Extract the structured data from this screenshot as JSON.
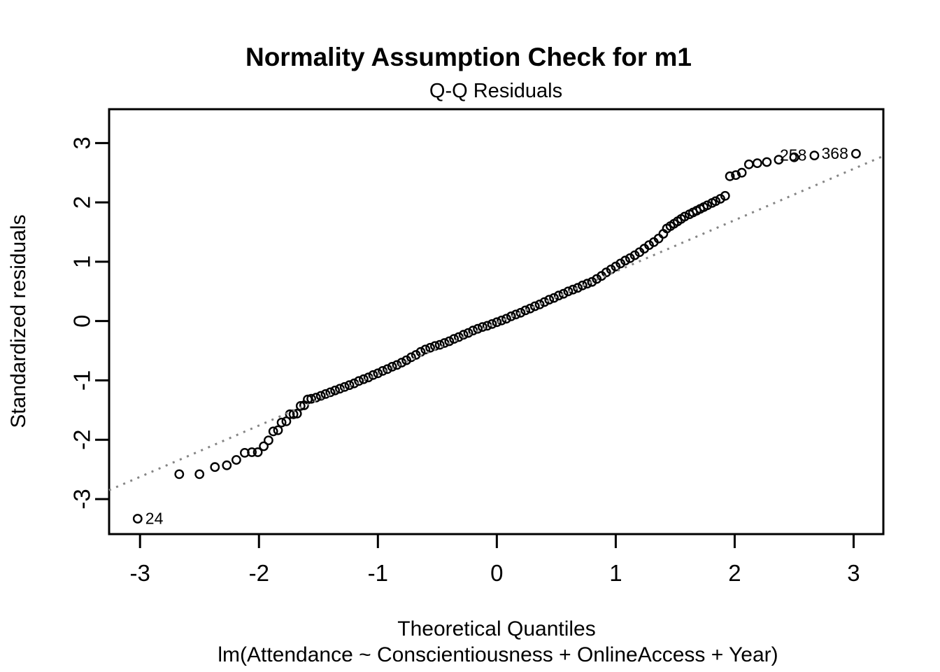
{
  "chart_data": {
    "type": "scatter",
    "title": "Normality Assumption Check for m1",
    "subtitle": "Q-Q Residuals",
    "xlabel": "Theoretical Quantiles",
    "sub_caption": "lm(Attendance ~ Conscientiousness + OnlineAccess + Year)",
    "ylabel": "Standardized residuals",
    "x_ticks": [
      -3,
      -2,
      -1,
      0,
      1,
      2,
      3
    ],
    "y_ticks": [
      -3,
      -2,
      -1,
      0,
      1,
      2,
      3
    ],
    "xlim": [
      -3.26,
      3.25
    ],
    "ylim": [
      -3.59,
      3.57
    ],
    "grid": false,
    "marker": {
      "shape": "open-circle",
      "color": "#000000",
      "radius_px": 5.7
    },
    "reference_line": {
      "style": "dotted",
      "color": "#858585",
      "slope": 0.865,
      "intercept": -0.03
    },
    "labeled_points": [
      {
        "label": "24",
        "x": -3.02,
        "y": -3.33,
        "side": "right"
      },
      {
        "label": "258",
        "x": 2.67,
        "y": 2.79,
        "side": "left"
      },
      {
        "label": "368",
        "x": 3.02,
        "y": 2.82,
        "side": "left"
      }
    ],
    "points": [
      [
        -3.02,
        -3.33
      ],
      [
        -2.67,
        -2.58
      ],
      [
        -2.5,
        -2.58
      ],
      [
        -2.37,
        -2.46
      ],
      [
        -2.27,
        -2.43
      ],
      [
        -2.19,
        -2.34
      ],
      [
        -2.12,
        -2.22
      ],
      [
        -2.06,
        -2.21
      ],
      [
        -2.01,
        -2.21
      ],
      [
        -1.96,
        -2.11
      ],
      [
        -1.92,
        -2.01
      ],
      [
        -1.88,
        -1.86
      ],
      [
        -1.84,
        -1.84
      ],
      [
        -1.81,
        -1.71
      ],
      [
        -1.77,
        -1.69
      ],
      [
        -1.74,
        -1.57
      ],
      [
        -1.71,
        -1.57
      ],
      [
        -1.68,
        -1.56
      ],
      [
        -1.65,
        -1.43
      ],
      [
        -1.62,
        -1.42
      ],
      [
        -1.59,
        -1.32
      ],
      [
        -1.56,
        -1.31
      ],
      [
        -1.52,
        -1.29
      ],
      [
        -1.48,
        -1.26
      ],
      [
        -1.44,
        -1.23
      ],
      [
        -1.4,
        -1.2
      ],
      [
        -1.36,
        -1.17
      ],
      [
        -1.32,
        -1.14
      ],
      [
        -1.28,
        -1.11
      ],
      [
        -1.24,
        -1.08
      ],
      [
        -1.2,
        -1.05
      ],
      [
        -1.16,
        -1.01
      ],
      [
        -1.12,
        -0.98
      ],
      [
        -1.08,
        -0.95
      ],
      [
        -1.04,
        -0.91
      ],
      [
        -1,
        -0.88
      ],
      [
        -0.96,
        -0.84
      ],
      [
        -0.92,
        -0.81
      ],
      [
        -0.88,
        -0.77
      ],
      [
        -0.84,
        -0.74
      ],
      [
        -0.8,
        -0.7
      ],
      [
        -0.76,
        -0.66
      ],
      [
        -0.72,
        -0.61
      ],
      [
        -0.68,
        -0.57
      ],
      [
        -0.64,
        -0.52
      ],
      [
        -0.6,
        -0.48
      ],
      [
        -0.56,
        -0.45
      ],
      [
        -0.52,
        -0.42
      ],
      [
        -0.48,
        -0.4
      ],
      [
        -0.44,
        -0.37
      ],
      [
        -0.4,
        -0.34
      ],
      [
        -0.36,
        -0.3
      ],
      [
        -0.32,
        -0.27
      ],
      [
        -0.28,
        -0.23
      ],
      [
        -0.24,
        -0.2
      ],
      [
        -0.2,
        -0.16
      ],
      [
        -0.16,
        -0.13
      ],
      [
        -0.12,
        -0.1
      ],
      [
        -0.08,
        -0.08
      ],
      [
        -0.04,
        -0.05
      ],
      [
        0,
        -0.02
      ],
      [
        0.04,
        0.01
      ],
      [
        0.08,
        0.04
      ],
      [
        0.12,
        0.08
      ],
      [
        0.16,
        0.11
      ],
      [
        0.2,
        0.14
      ],
      [
        0.24,
        0.18
      ],
      [
        0.28,
        0.21
      ],
      [
        0.32,
        0.25
      ],
      [
        0.36,
        0.28
      ],
      [
        0.4,
        0.32
      ],
      [
        0.44,
        0.36
      ],
      [
        0.48,
        0.39
      ],
      [
        0.52,
        0.43
      ],
      [
        0.56,
        0.46
      ],
      [
        0.6,
        0.5
      ],
      [
        0.64,
        0.53
      ],
      [
        0.68,
        0.56
      ],
      [
        0.72,
        0.6
      ],
      [
        0.76,
        0.63
      ],
      [
        0.8,
        0.66
      ],
      [
        0.84,
        0.71
      ],
      [
        0.88,
        0.76
      ],
      [
        0.92,
        0.82
      ],
      [
        0.96,
        0.87
      ],
      [
        1,
        0.92
      ],
      [
        1.04,
        0.97
      ],
      [
        1.08,
        1.02
      ],
      [
        1.12,
        1.06
      ],
      [
        1.16,
        1.11
      ],
      [
        1.2,
        1.16
      ],
      [
        1.24,
        1.22
      ],
      [
        1.28,
        1.28
      ],
      [
        1.32,
        1.33
      ],
      [
        1.36,
        1.39
      ],
      [
        1.4,
        1.47
      ],
      [
        1.43,
        1.56
      ],
      [
        1.46,
        1.6
      ],
      [
        1.49,
        1.64
      ],
      [
        1.52,
        1.68
      ],
      [
        1.55,
        1.72
      ],
      [
        1.58,
        1.76
      ],
      [
        1.62,
        1.8
      ],
      [
        1.65,
        1.83
      ],
      [
        1.68,
        1.86
      ],
      [
        1.71,
        1.89
      ],
      [
        1.74,
        1.92
      ],
      [
        1.77,
        1.95
      ],
      [
        1.81,
        1.99
      ],
      [
        1.84,
        2.02
      ],
      [
        1.88,
        2.06
      ],
      [
        1.92,
        2.11
      ],
      [
        1.96,
        2.44
      ],
      [
        2.01,
        2.46
      ],
      [
        2.06,
        2.5
      ],
      [
        2.12,
        2.64
      ],
      [
        2.19,
        2.66
      ],
      [
        2.27,
        2.68
      ],
      [
        2.37,
        2.72
      ],
      [
        2.5,
        2.76
      ],
      [
        2.67,
        2.79
      ],
      [
        3.02,
        2.82
      ]
    ]
  }
}
